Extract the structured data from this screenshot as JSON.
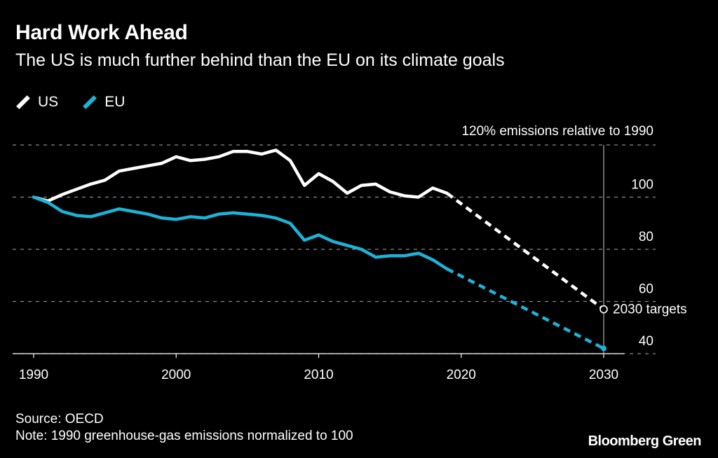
{
  "header": {
    "title": "Hard Work Ahead",
    "subtitle": "The US is much further behind than the EU on its climate goals"
  },
  "legend": [
    {
      "label": "US",
      "color": "#ffffff"
    },
    {
      "label": "EU",
      "color": "#1bb4d8"
    }
  ],
  "footer": {
    "source": "Source: OECD",
    "note": "Note: 1990 greenhouse-gas emissions normalized to 100",
    "brand": "Bloomberg Green"
  },
  "chart_data": {
    "type": "line",
    "title": "Hard Work Ahead",
    "subtitle": "The US is much further behind than the EU on its climate goals",
    "ylabel": "120% emissions relative to 1990",
    "xlim": [
      1990,
      2030
    ],
    "ylim": [
      40,
      120
    ],
    "xticks": [
      1990,
      2000,
      2010,
      2020,
      2030
    ],
    "yticks": [
      {
        "value": 120,
        "label": "120% emissions relative to 1990"
      },
      {
        "value": 100,
        "label": "100"
      },
      {
        "value": 80,
        "label": "80"
      },
      {
        "value": 60,
        "label": "60"
      },
      {
        "value": 40,
        "label": "40"
      }
    ],
    "annotation": {
      "label": "2030 targets",
      "x": 2030,
      "y": 57
    },
    "series": [
      {
        "name": "US",
        "color": "#ffffff",
        "x": [
          1990,
          1991,
          1992,
          1993,
          1994,
          1995,
          1996,
          1997,
          1998,
          1999,
          2000,
          2001,
          2002,
          2003,
          2004,
          2005,
          2006,
          2007,
          2008,
          2009,
          2010,
          2011,
          2012,
          2013,
          2014,
          2015,
          2016,
          2017,
          2018,
          2019
        ],
        "values": [
          100,
          98.5,
          101,
          103,
          105,
          106.5,
          110,
          111,
          112,
          113,
          115.5,
          114,
          114.5,
          115.5,
          117.5,
          117.5,
          116.5,
          118,
          114,
          104.5,
          109,
          106,
          101.5,
          104.5,
          105,
          102,
          100.5,
          100,
          103.5,
          101.5
        ],
        "projection": {
          "x": [
            2019,
            2030
          ],
          "values": [
            101.5,
            57
          ]
        }
      },
      {
        "name": "EU",
        "color": "#1bb4d8",
        "x": [
          1990,
          1991,
          1992,
          1993,
          1994,
          1995,
          1996,
          1997,
          1998,
          1999,
          2000,
          2001,
          2002,
          2003,
          2004,
          2005,
          2006,
          2007,
          2008,
          2009,
          2010,
          2011,
          2012,
          2013,
          2014,
          2015,
          2016,
          2017,
          2018,
          2019
        ],
        "values": [
          100,
          98,
          94.5,
          93,
          92.5,
          94,
          95.5,
          94.5,
          93.5,
          92,
          91.5,
          92.5,
          92,
          93.5,
          94,
          93.5,
          93,
          92,
          90,
          83.5,
          85.5,
          83,
          81.5,
          80,
          77,
          77.5,
          77.5,
          78.5,
          76,
          72.5
        ],
        "projection": {
          "x": [
            2019,
            2030
          ],
          "values": [
            72.5,
            42
          ]
        }
      }
    ]
  }
}
